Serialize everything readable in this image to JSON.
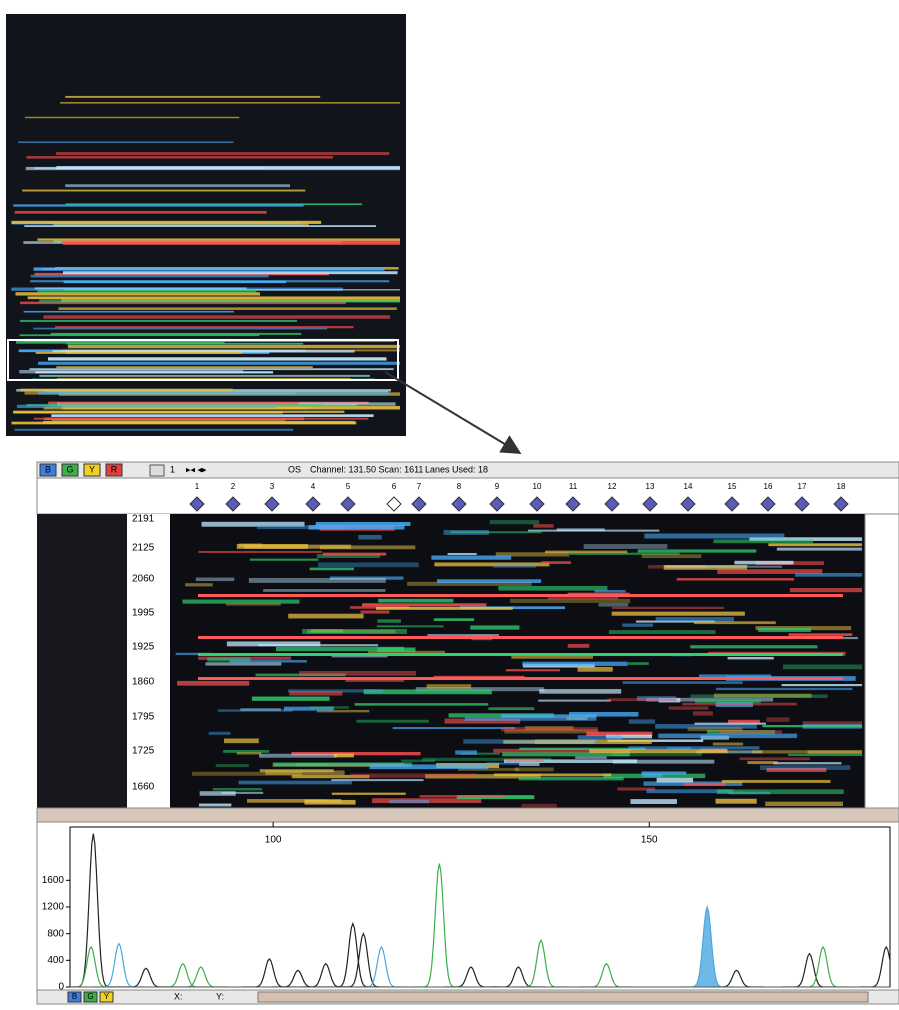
{
  "toolbar": {
    "buttons": [
      "B",
      "G",
      "Y",
      "R"
    ],
    "lane_tool": "1",
    "os": "OS",
    "channel": "Channel: 131.50 Scan: 1611",
    "lanes_used": "Lanes Used: 18"
  },
  "lanes": [
    "1",
    "2",
    "3",
    "4",
    "5",
    "6",
    "7",
    "8",
    "9",
    "10",
    "11",
    "12",
    "13",
    "14",
    "15",
    "16",
    "17",
    "18"
  ],
  "scan_labels": [
    "2191",
    "2125",
    "2060",
    "1995",
    "1925",
    "1860",
    "1795",
    "1725",
    "1660"
  ],
  "chart_data": {
    "type": "line",
    "xlim": [
      73,
      182
    ],
    "ylim": [
      0,
      2400
    ],
    "xticks": [
      100,
      150
    ],
    "yticks": [
      0,
      400,
      800,
      1200,
      1600
    ],
    "series": [
      {
        "color": "#222222",
        "x": [
          76.1,
          83.1,
          99.5,
          103.3,
          107.0,
          110.6,
          112.0,
          126.3,
          132.6,
          161.6,
          171.3,
          181.5
        ],
        "values": [
          2300,
          280,
          420,
          250,
          350,
          950,
          800,
          300,
          300,
          250,
          500,
          600
        ]
      },
      {
        "color": "#3cae4a",
        "x": [
          75.8,
          88.0,
          90.4,
          122.1,
          135.6,
          144.3,
          173.1
        ],
        "values": [
          600,
          350,
          300,
          1850,
          700,
          350,
          600
        ]
      },
      {
        "color": "#4aa8e0",
        "x": [
          79.5,
          114.4,
          157.7
        ],
        "values": [
          650,
          600,
          1200
        ]
      }
    ]
  },
  "status": {
    "buttons": [
      "B",
      "G",
      "Y"
    ],
    "x_label": "X:",
    "y_label": "Y:"
  }
}
